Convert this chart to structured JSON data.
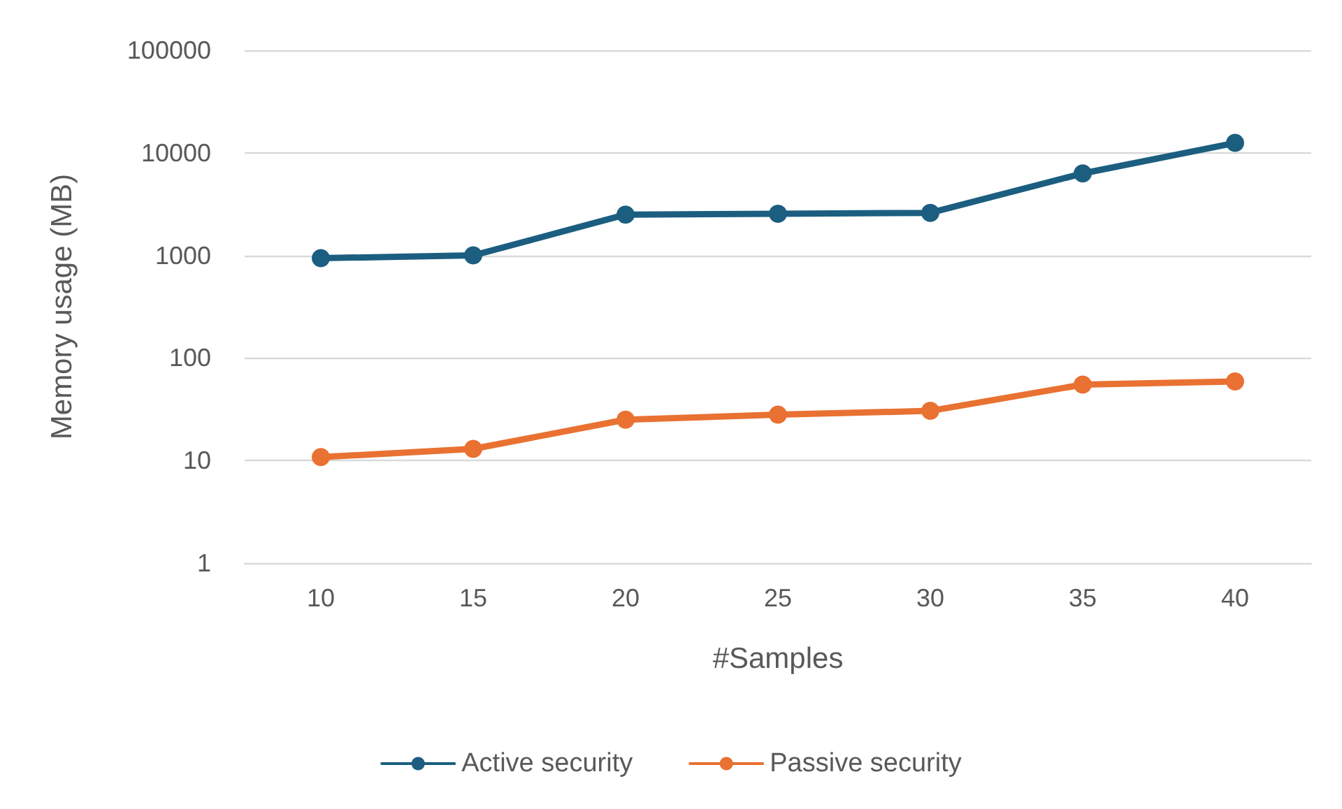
{
  "chart_data": {
    "type": "line",
    "xlabel": "#Samples",
    "ylabel": "Memory usage (MB)",
    "categories": [
      "10",
      "15",
      "20",
      "25",
      "30",
      "35",
      "40"
    ],
    "series": [
      {
        "name": "Active security",
        "color": "#1b5e80",
        "values": [
          940,
          1000,
          2500,
          2550,
          2600,
          6300,
          12500
        ]
      },
      {
        "name": "Passive security",
        "color": "#e97132",
        "values": [
          10.8,
          13,
          25,
          28,
          30.5,
          55,
          59
        ]
      }
    ],
    "log": "y",
    "ylim": [
      1,
      100000
    ],
    "yticks": [
      1,
      10,
      100,
      1000,
      10000,
      100000
    ],
    "grid": "y",
    "legend": "bottom",
    "marker": "circle",
    "line_style": "solid"
  }
}
